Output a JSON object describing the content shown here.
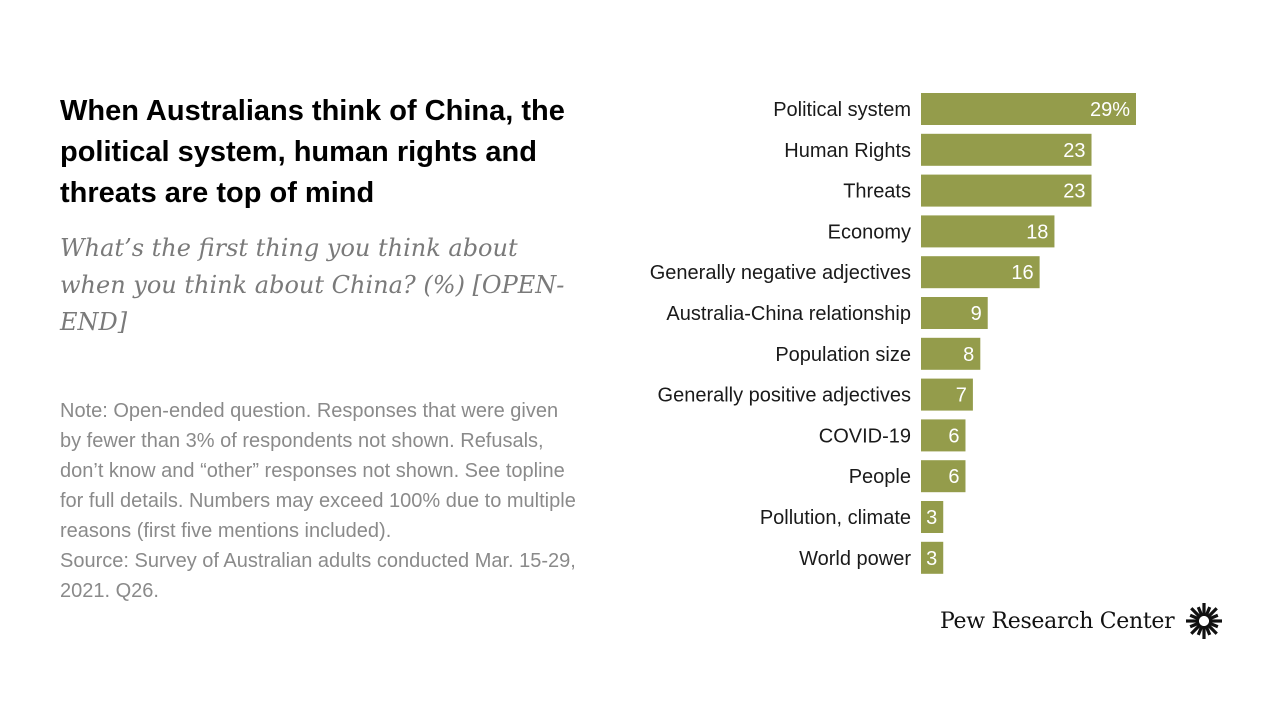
{
  "header": {
    "title": "When Australians think of China, the political system, human rights and threats are top of mind",
    "subtitle": "What’s the first thing you think about when you think about China? (%) [OPEN-END]"
  },
  "notes": {
    "note": "Note: Open-ended question. Responses that were given by fewer than 3% of respondents not shown. Refusals, don’t know and “other” responses not shown. See topline for full details. Numbers may exceed 100% due to multiple reasons (first five mentions included).",
    "source": "Source: Survey of Australian adults conducted Mar. 15-29, 2021. Q26."
  },
  "brand": {
    "name": "Pew Research Center",
    "logo_icon": "pew-sunburst-icon"
  },
  "colors": {
    "bar": "#949c4b",
    "bar_value_text": "#ffffff"
  },
  "chart_data": {
    "type": "bar",
    "orientation": "horizontal",
    "title": "What’s the first thing you think about when you think about China? (%) [OPEN-END]",
    "xlabel": "",
    "ylabel": "",
    "xlim": [
      0,
      29
    ],
    "grid": false,
    "legend": "none",
    "categories": [
      "Political system",
      "Human Rights",
      "Threats",
      "Economy",
      "Generally negative adjectives",
      "Australia-China relationship",
      "Population size",
      "Generally positive adjectives",
      "COVID-19",
      "People",
      "Pollution, climate",
      "World power"
    ],
    "values": [
      29,
      23,
      23,
      18,
      16,
      9,
      8,
      7,
      6,
      6,
      3,
      3
    ],
    "value_labels": [
      "29%",
      "23",
      "23",
      "18",
      "16",
      "9",
      "8",
      "7",
      "6",
      "6",
      "3",
      "3"
    ]
  }
}
